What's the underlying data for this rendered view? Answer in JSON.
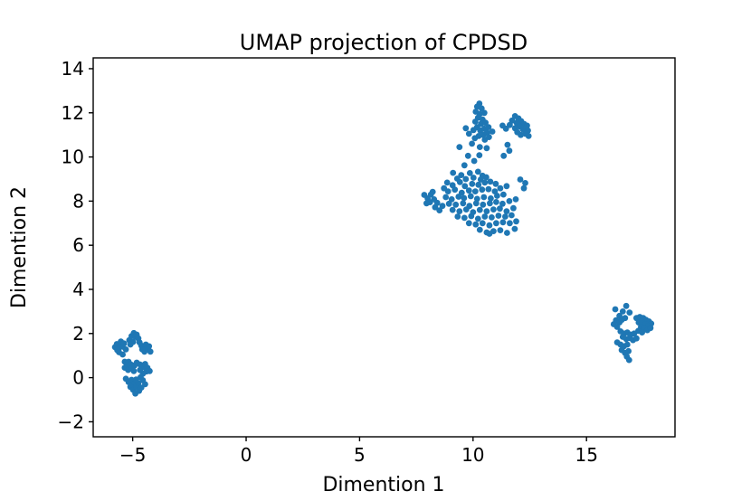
{
  "chart_data": {
    "type": "scatter",
    "title": "UMAP projection of CPDSD",
    "xlabel": "Dimention 1",
    "ylabel": "Dimention 2",
    "xlim": [
      -6.74,
      18.9
    ],
    "ylim": [
      -2.68,
      14.49
    ],
    "xticks": [
      -5,
      0,
      5,
      10,
      15
    ],
    "yticks": [
      -2,
      0,
      2,
      4,
      6,
      8,
      10,
      12,
      14
    ],
    "grid": false,
    "legend": "none",
    "marker_color": "#1f77b4",
    "marker_radius": 3.4,
    "clusters": [
      {
        "name": "bottom-left",
        "points": [
          [
            -5.78,
            1.38
          ],
          [
            -5.7,
            1.52
          ],
          [
            -5.62,
            1.33
          ],
          [
            -5.55,
            1.48
          ],
          [
            -5.52,
            1.64
          ],
          [
            -5.45,
            1.4
          ],
          [
            -5.38,
            1.55
          ],
          [
            -5.6,
            1.15
          ],
          [
            -5.44,
            1.05
          ],
          [
            -5.3,
            1.28
          ],
          [
            -5.68,
            1.25
          ],
          [
            -5.15,
            1.7
          ],
          [
            -5.05,
            1.88
          ],
          [
            -4.95,
            2.02
          ],
          [
            -4.88,
            1.85
          ],
          [
            -4.98,
            1.62
          ],
          [
            -4.82,
            1.95
          ],
          [
            -4.75,
            1.78
          ],
          [
            -5.1,
            1.5
          ],
          [
            -4.7,
            1.6
          ],
          [
            -4.62,
            1.45
          ],
          [
            -4.5,
            1.35
          ],
          [
            -4.42,
            1.5
          ],
          [
            -4.35,
            1.3
          ],
          [
            -4.28,
            1.42
          ],
          [
            -4.22,
            1.18
          ],
          [
            -4.48,
            1.18
          ],
          [
            -4.58,
            1.28
          ],
          [
            -5.35,
            0.72
          ],
          [
            -5.25,
            0.58
          ],
          [
            -5.35,
            0.45
          ],
          [
            -5.18,
            0.72
          ],
          [
            -5.08,
            0.6
          ],
          [
            -5.2,
            0.35
          ],
          [
            -5.05,
            0.42
          ],
          [
            -4.92,
            0.55
          ],
          [
            -4.82,
            0.68
          ],
          [
            -4.95,
            0.3
          ],
          [
            -4.68,
            0.6
          ],
          [
            -4.55,
            0.48
          ],
          [
            -4.45,
            0.62
          ],
          [
            -4.35,
            0.45
          ],
          [
            -4.25,
            0.3
          ],
          [
            -4.4,
            0.28
          ],
          [
            -4.55,
            0.18
          ],
          [
            -4.68,
            0.35
          ],
          [
            -5.3,
            -0.05
          ],
          [
            -5.18,
            -0.2
          ],
          [
            -5.05,
            -0.1
          ],
          [
            -4.95,
            -0.28
          ],
          [
            -5.1,
            -0.42
          ],
          [
            -4.98,
            -0.55
          ],
          [
            -4.85,
            -0.42
          ],
          [
            -4.75,
            -0.25
          ],
          [
            -4.85,
            -0.08
          ],
          [
            -4.72,
            -0.6
          ],
          [
            -4.88,
            -0.72
          ],
          [
            -4.62,
            -0.45
          ],
          [
            -4.55,
            -0.12
          ],
          [
            -4.45,
            -0.3
          ],
          [
            -4.65,
            0.02
          ]
        ]
      },
      {
        "name": "center-top",
        "points": [
          [
            10.28,
            12.42
          ],
          [
            10.18,
            12.28
          ],
          [
            10.38,
            12.2
          ],
          [
            10.12,
            12.05
          ],
          [
            10.3,
            11.95
          ],
          [
            10.5,
            12.0
          ],
          [
            10.22,
            11.78
          ],
          [
            10.42,
            11.7
          ],
          [
            10.1,
            11.6
          ],
          [
            10.35,
            11.5
          ],
          [
            10.55,
            11.55
          ],
          [
            10.18,
            11.35
          ],
          [
            10.02,
            11.22
          ],
          [
            10.32,
            11.2
          ],
          [
            10.5,
            11.28
          ],
          [
            10.68,
            11.35
          ],
          [
            10.62,
            11.1
          ],
          [
            10.45,
            11.0
          ],
          [
            10.25,
            10.95
          ],
          [
            10.08,
            10.85
          ],
          [
            10.52,
            10.78
          ],
          [
            10.7,
            10.9
          ],
          [
            10.85,
            11.15
          ],
          [
            9.82,
            11.05
          ],
          [
            9.95,
            10.6
          ],
          [
            10.3,
            10.45
          ],
          [
            10.6,
            10.4
          ],
          [
            9.68,
            11.3
          ],
          [
            11.85,
            11.85
          ],
          [
            12.0,
            11.75
          ],
          [
            12.12,
            11.62
          ],
          [
            11.92,
            11.55
          ],
          [
            12.25,
            11.5
          ],
          [
            12.38,
            11.42
          ],
          [
            12.05,
            11.38
          ],
          [
            11.85,
            11.3
          ],
          [
            12.2,
            11.25
          ],
          [
            12.42,
            11.2
          ],
          [
            12.3,
            11.05
          ],
          [
            12.1,
            11.0
          ],
          [
            11.95,
            11.12
          ],
          [
            12.45,
            10.95
          ],
          [
            11.62,
            11.45
          ],
          [
            11.72,
            11.65
          ],
          [
            11.3,
            11.42
          ],
          [
            11.45,
            11.28
          ],
          [
            11.52,
            10.55
          ],
          [
            11.6,
            10.28
          ],
          [
            11.35,
            10.05
          ],
          [
            9.4,
            10.45
          ],
          [
            9.78,
            10.05
          ],
          [
            10.05,
            9.82
          ],
          [
            9.62,
            9.62
          ],
          [
            10.28,
            10.08
          ],
          [
            7.85,
            8.28
          ],
          [
            8.0,
            8.12
          ],
          [
            8.14,
            8.3
          ],
          [
            8.1,
            7.95
          ],
          [
            8.28,
            8.08
          ],
          [
            8.42,
            7.92
          ],
          [
            8.33,
            7.72
          ],
          [
            8.52,
            7.58
          ],
          [
            8.65,
            7.78
          ],
          [
            8.22,
            8.42
          ],
          [
            7.95,
            7.9
          ],
          [
            9.12,
            9.28
          ],
          [
            9.48,
            9.18
          ],
          [
            9.86,
            9.27
          ],
          [
            10.22,
            9.33
          ],
          [
            10.42,
            9.15
          ],
          [
            9.3,
            9.02
          ],
          [
            9.68,
            9.0
          ],
          [
            10.02,
            9.06
          ],
          [
            10.34,
            8.98
          ],
          [
            10.58,
            9.08
          ],
          [
            8.86,
            8.84
          ],
          [
            9.1,
            8.72
          ],
          [
            9.42,
            8.86
          ],
          [
            9.64,
            8.68
          ],
          [
            9.96,
            8.78
          ],
          [
            10.24,
            8.74
          ],
          [
            10.52,
            8.84
          ],
          [
            10.76,
            8.88
          ],
          [
            11.0,
            8.78
          ],
          [
            8.72,
            8.58
          ],
          [
            8.9,
            8.44
          ],
          [
            9.2,
            8.52
          ],
          [
            9.5,
            8.38
          ],
          [
            9.82,
            8.48
          ],
          [
            10.1,
            8.44
          ],
          [
            10.4,
            8.52
          ],
          [
            10.68,
            8.54
          ],
          [
            10.96,
            8.44
          ],
          [
            11.2,
            8.58
          ],
          [
            11.48,
            8.68
          ],
          [
            12.08,
            8.98
          ],
          [
            12.3,
            8.82
          ],
          [
            8.8,
            8.18
          ],
          [
            9.06,
            8.08
          ],
          [
            9.36,
            8.2
          ],
          [
            9.6,
            8.14
          ],
          [
            9.9,
            8.22
          ],
          [
            10.18,
            8.1
          ],
          [
            10.48,
            8.18
          ],
          [
            10.78,
            8.12
          ],
          [
            11.06,
            8.24
          ],
          [
            11.34,
            8.3
          ],
          [
            12.24,
            8.58
          ],
          [
            8.94,
            7.88
          ],
          [
            9.24,
            7.84
          ],
          [
            9.56,
            7.9
          ],
          [
            9.84,
            7.78
          ],
          [
            10.14,
            7.9
          ],
          [
            10.44,
            7.84
          ],
          [
            10.74,
            7.9
          ],
          [
            11.02,
            7.96
          ],
          [
            11.3,
            7.88
          ],
          [
            11.6,
            8.0
          ],
          [
            11.88,
            8.08
          ],
          [
            9.1,
            7.6
          ],
          [
            9.4,
            7.54
          ],
          [
            9.7,
            7.62
          ],
          [
            10.0,
            7.5
          ],
          [
            10.3,
            7.6
          ],
          [
            10.6,
            7.54
          ],
          [
            10.9,
            7.62
          ],
          [
            11.18,
            7.66
          ],
          [
            11.48,
            7.54
          ],
          [
            11.78,
            7.68
          ],
          [
            9.32,
            7.3
          ],
          [
            9.62,
            7.24
          ],
          [
            9.92,
            7.32
          ],
          [
            10.22,
            7.2
          ],
          [
            10.52,
            7.3
          ],
          [
            10.82,
            7.26
          ],
          [
            11.12,
            7.34
          ],
          [
            11.42,
            7.3
          ],
          [
            11.7,
            7.36
          ],
          [
            9.82,
            7.0
          ],
          [
            10.12,
            6.94
          ],
          [
            10.42,
            7.0
          ],
          [
            10.72,
            6.9
          ],
          [
            11.02,
            7.0
          ],
          [
            11.32,
            7.04
          ],
          [
            11.62,
            7.0
          ],
          [
            11.9,
            7.08
          ],
          [
            10.3,
            6.7
          ],
          [
            10.6,
            6.58
          ],
          [
            10.9,
            6.64
          ],
          [
            11.2,
            6.68
          ],
          [
            11.5,
            6.56
          ],
          [
            11.84,
            6.74
          ],
          [
            10.72,
            6.52
          ]
        ]
      },
      {
        "name": "right",
        "points": [
          [
            16.27,
            3.1
          ],
          [
            16.75,
            3.25
          ],
          [
            16.9,
            2.95
          ],
          [
            16.6,
            3.0
          ],
          [
            16.45,
            2.8
          ],
          [
            16.3,
            2.6
          ],
          [
            16.45,
            2.5
          ],
          [
            16.2,
            2.42
          ],
          [
            16.35,
            2.3
          ],
          [
            16.55,
            2.62
          ],
          [
            16.7,
            2.7
          ],
          [
            17.2,
            2.7
          ],
          [
            17.35,
            2.75
          ],
          [
            17.5,
            2.7
          ],
          [
            17.62,
            2.62
          ],
          [
            17.75,
            2.55
          ],
          [
            17.85,
            2.45
          ],
          [
            17.3,
            2.5
          ],
          [
            17.45,
            2.52
          ],
          [
            17.6,
            2.42
          ],
          [
            17.72,
            2.35
          ],
          [
            17.4,
            2.3
          ],
          [
            17.55,
            2.25
          ],
          [
            17.68,
            2.15
          ],
          [
            17.82,
            2.25
          ],
          [
            17.28,
            2.12
          ],
          [
            17.45,
            2.05
          ],
          [
            16.5,
            2.1
          ],
          [
            16.65,
            2.0
          ],
          [
            16.8,
            2.05
          ],
          [
            16.95,
            1.95
          ],
          [
            17.1,
            2.0
          ],
          [
            16.6,
            1.85
          ],
          [
            16.75,
            1.75
          ],
          [
            16.9,
            1.8
          ],
          [
            17.05,
            1.7
          ],
          [
            17.2,
            1.78
          ],
          [
            16.35,
            1.6
          ],
          [
            16.5,
            1.5
          ],
          [
            16.65,
            1.42
          ],
          [
            16.8,
            1.5
          ],
          [
            16.55,
            1.25
          ],
          [
            16.7,
            1.12
          ],
          [
            16.85,
            1.2
          ],
          [
            16.78,
            0.95
          ],
          [
            16.88,
            0.8
          ]
        ]
      }
    ]
  }
}
